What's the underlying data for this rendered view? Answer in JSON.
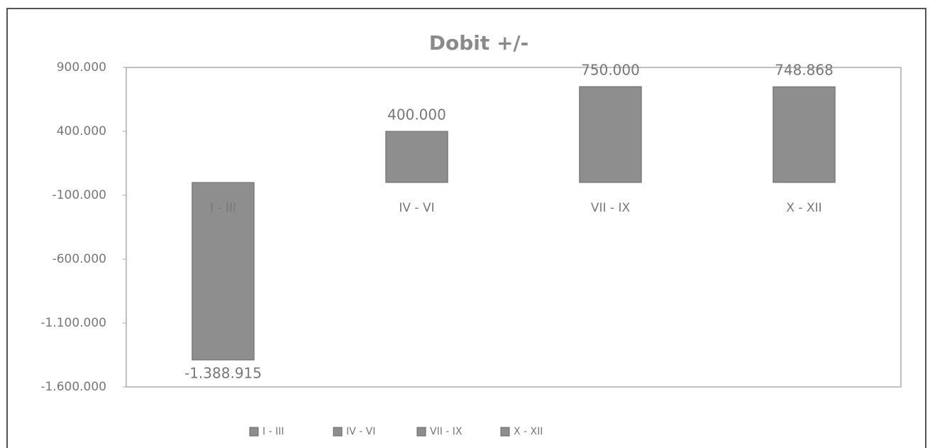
{
  "chart_data": {
    "type": "bar",
    "title": "Dobit +/-",
    "categories": [
      "I - III",
      "IV - VI",
      "VII - IX",
      "X - XII"
    ],
    "values": [
      -1388915,
      400000,
      750000,
      748868
    ],
    "value_labels": [
      "-1.388.915",
      "400.000",
      "750.000",
      "748.868"
    ],
    "color": "#8e8e8e",
    "ylim": [
      -1600000,
      900000
    ],
    "yticks": [
      {
        "value": 900000,
        "label": "900.000"
      },
      {
        "value": 400000,
        "label": "400.000"
      },
      {
        "value": -100000,
        "label": "-100.000"
      },
      {
        "value": -600000,
        "label": "-600.000"
      },
      {
        "value": -1100000,
        "label": "-1.100.000"
      },
      {
        "value": -1600000,
        "label": "-1.600.000"
      }
    ],
    "grid": false,
    "legend": "bottom"
  }
}
